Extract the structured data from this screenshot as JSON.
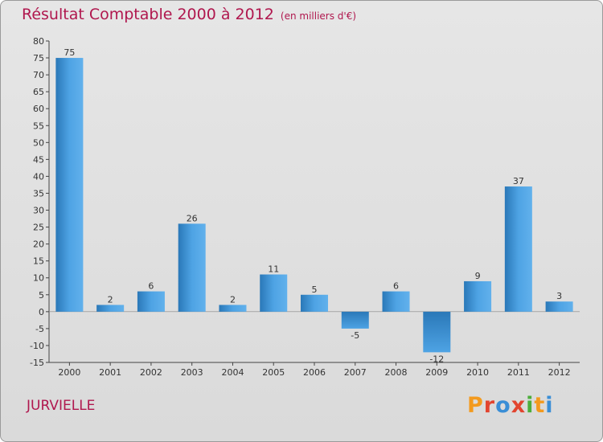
{
  "title": "Résultat Comptable 2000 à 2012",
  "subtitle": "(en milliers d'€)",
  "commune": "JURVIELLE",
  "logo": {
    "letters": [
      "P",
      "r",
      "o",
      "x",
      "i",
      "t",
      "i"
    ],
    "colors": [
      "#f39a1e",
      "#e2442f",
      "#3a8ed6",
      "#e2442f",
      "#4cae3c",
      "#f39a1e",
      "#3a8ed6"
    ]
  },
  "colors": {
    "bar": "#4ea3e4",
    "bar_dark": "#2a78b8",
    "title": "#b0174e"
  },
  "chart_data": {
    "type": "bar",
    "title": "Résultat Comptable 2000 à 2012",
    "xlabel": "",
    "ylabel": "",
    "categories": [
      "2000",
      "2001",
      "2002",
      "2003",
      "2004",
      "2005",
      "2006",
      "2007",
      "2008",
      "2009",
      "2010",
      "2011",
      "2012"
    ],
    "values": [
      75,
      2,
      6,
      26,
      2,
      11,
      5,
      -5,
      6,
      -12,
      9,
      37,
      3
    ],
    "labels": [
      "75",
      "2",
      "6",
      "26",
      "2",
      "11",
      "5",
      "-5",
      "6",
      "-12",
      "9",
      "37",
      "3"
    ],
    "ylim": [
      -15,
      80
    ],
    "yticks": [
      -15,
      -10,
      -5,
      0,
      5,
      10,
      15,
      20,
      25,
      30,
      35,
      40,
      45,
      50,
      55,
      60,
      65,
      70,
      75,
      80
    ],
    "grid": false
  }
}
